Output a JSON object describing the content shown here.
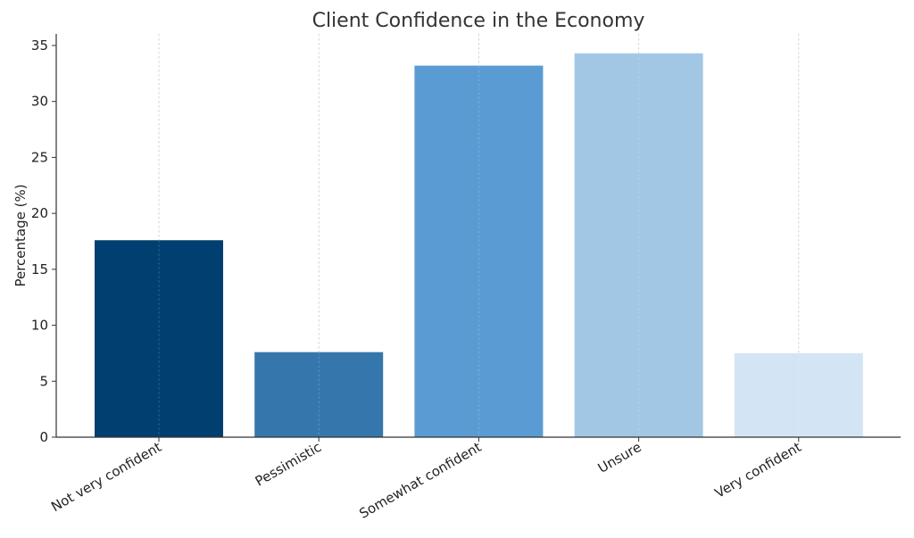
{
  "chart_data": {
    "type": "bar",
    "title": "Client Confidence in the Economy",
    "xlabel": "",
    "ylabel": "Percentage (%)",
    "categories": [
      "Not very confident",
      "Pessimistic",
      "Somewhat confident",
      "Unsure",
      "Very confident"
    ],
    "values": [
      17.6,
      7.6,
      33.2,
      34.3,
      7.5
    ],
    "colors": [
      "#003f6f",
      "#3577ac",
      "#5b9bd3",
      "#a2c7e4",
      "#d3e5f4"
    ],
    "ylim": [
      0,
      36
    ],
    "yticks": [
      0,
      5,
      10,
      15,
      20,
      25,
      30,
      35
    ],
    "grid": "x-vertical-dashed",
    "legend": "none"
  }
}
